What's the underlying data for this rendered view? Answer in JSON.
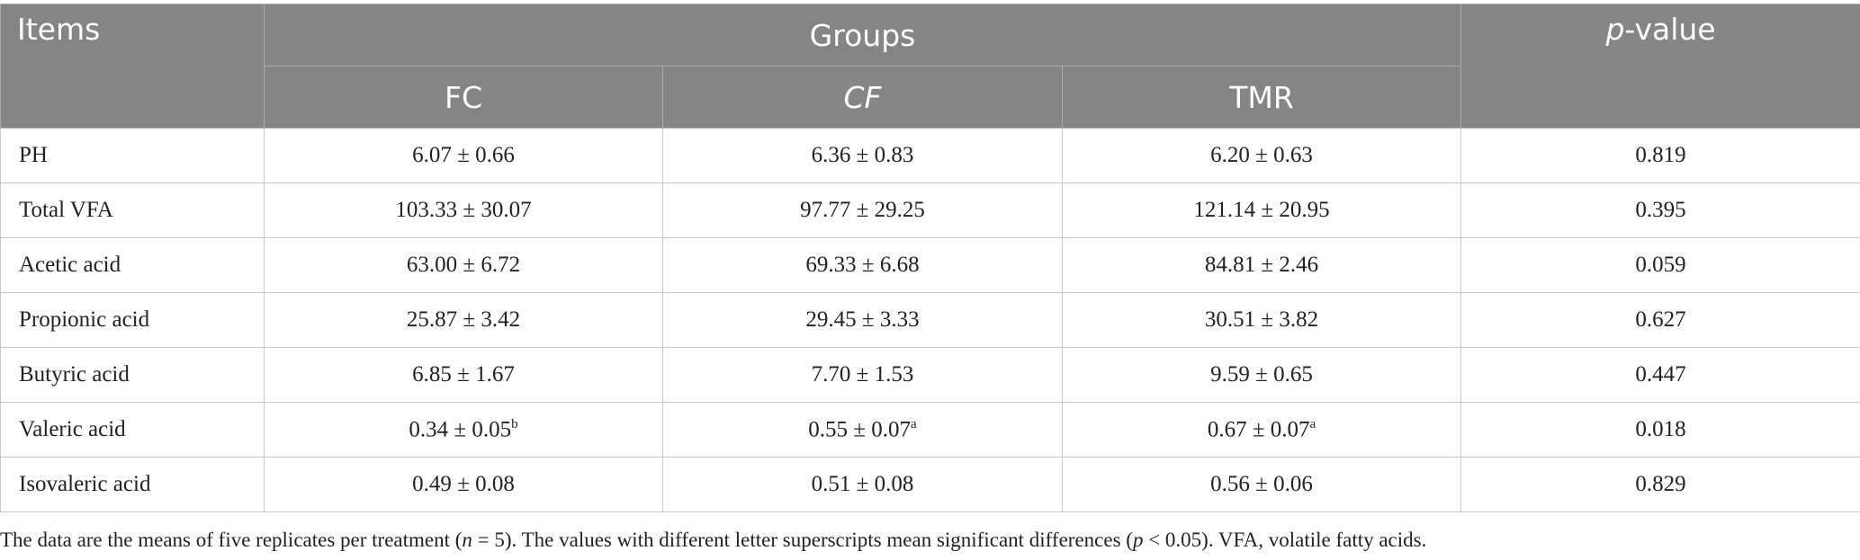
{
  "table": {
    "header": {
      "items": "Items",
      "groups": "Groups",
      "pvalue_italic": "p",
      "pvalue_rest": "-value",
      "columns": [
        "FC",
        "CF",
        "TMR"
      ]
    },
    "rows": [
      [
        "PH",
        "6.07 ± 0.66",
        "6.36 ± 0.83",
        "6.20 ± 0.63",
        "0.819"
      ],
      [
        "Total VFA",
        "103.33 ± 30.07",
        "97.77 ± 29.25",
        "121.14 ± 20.95",
        "0.395"
      ],
      [
        "Acetic acid",
        "63.00 ± 6.72",
        "69.33 ± 6.68",
        "84.81 ± 2.46",
        "0.059"
      ],
      [
        "Propionic acid",
        "25.87 ± 3.42",
        "29.45 ± 3.33",
        "30.51 ± 3.82",
        "0.627"
      ],
      [
        "Butyric acid",
        "6.85 ± 1.67",
        "7.70 ± 1.53",
        "9.59 ± 0.65",
        "0.447"
      ],
      [
        "Valeric acid",
        {
          "text": "0.34 ± 0.05",
          "sup": "b"
        },
        {
          "text": "0.55 ± 0.07",
          "sup": "a"
        },
        {
          "text": "0.67 ± 0.07",
          "sup": "a"
        },
        "0.018"
      ],
      [
        "Isovaleric acid",
        "0.49 ± 0.08",
        "0.51 ± 0.08",
        "0.56 ± 0.06",
        "0.829"
      ]
    ]
  },
  "footnote": [
    "The data are the means of five replicates per treatment (",
    {
      "italic": "n"
    },
    " = 5). The values with different letter superscripts mean significant differences (",
    {
      "italic": "p"
    },
    " < 0.05). VFA, volatile fatty acids."
  ]
}
